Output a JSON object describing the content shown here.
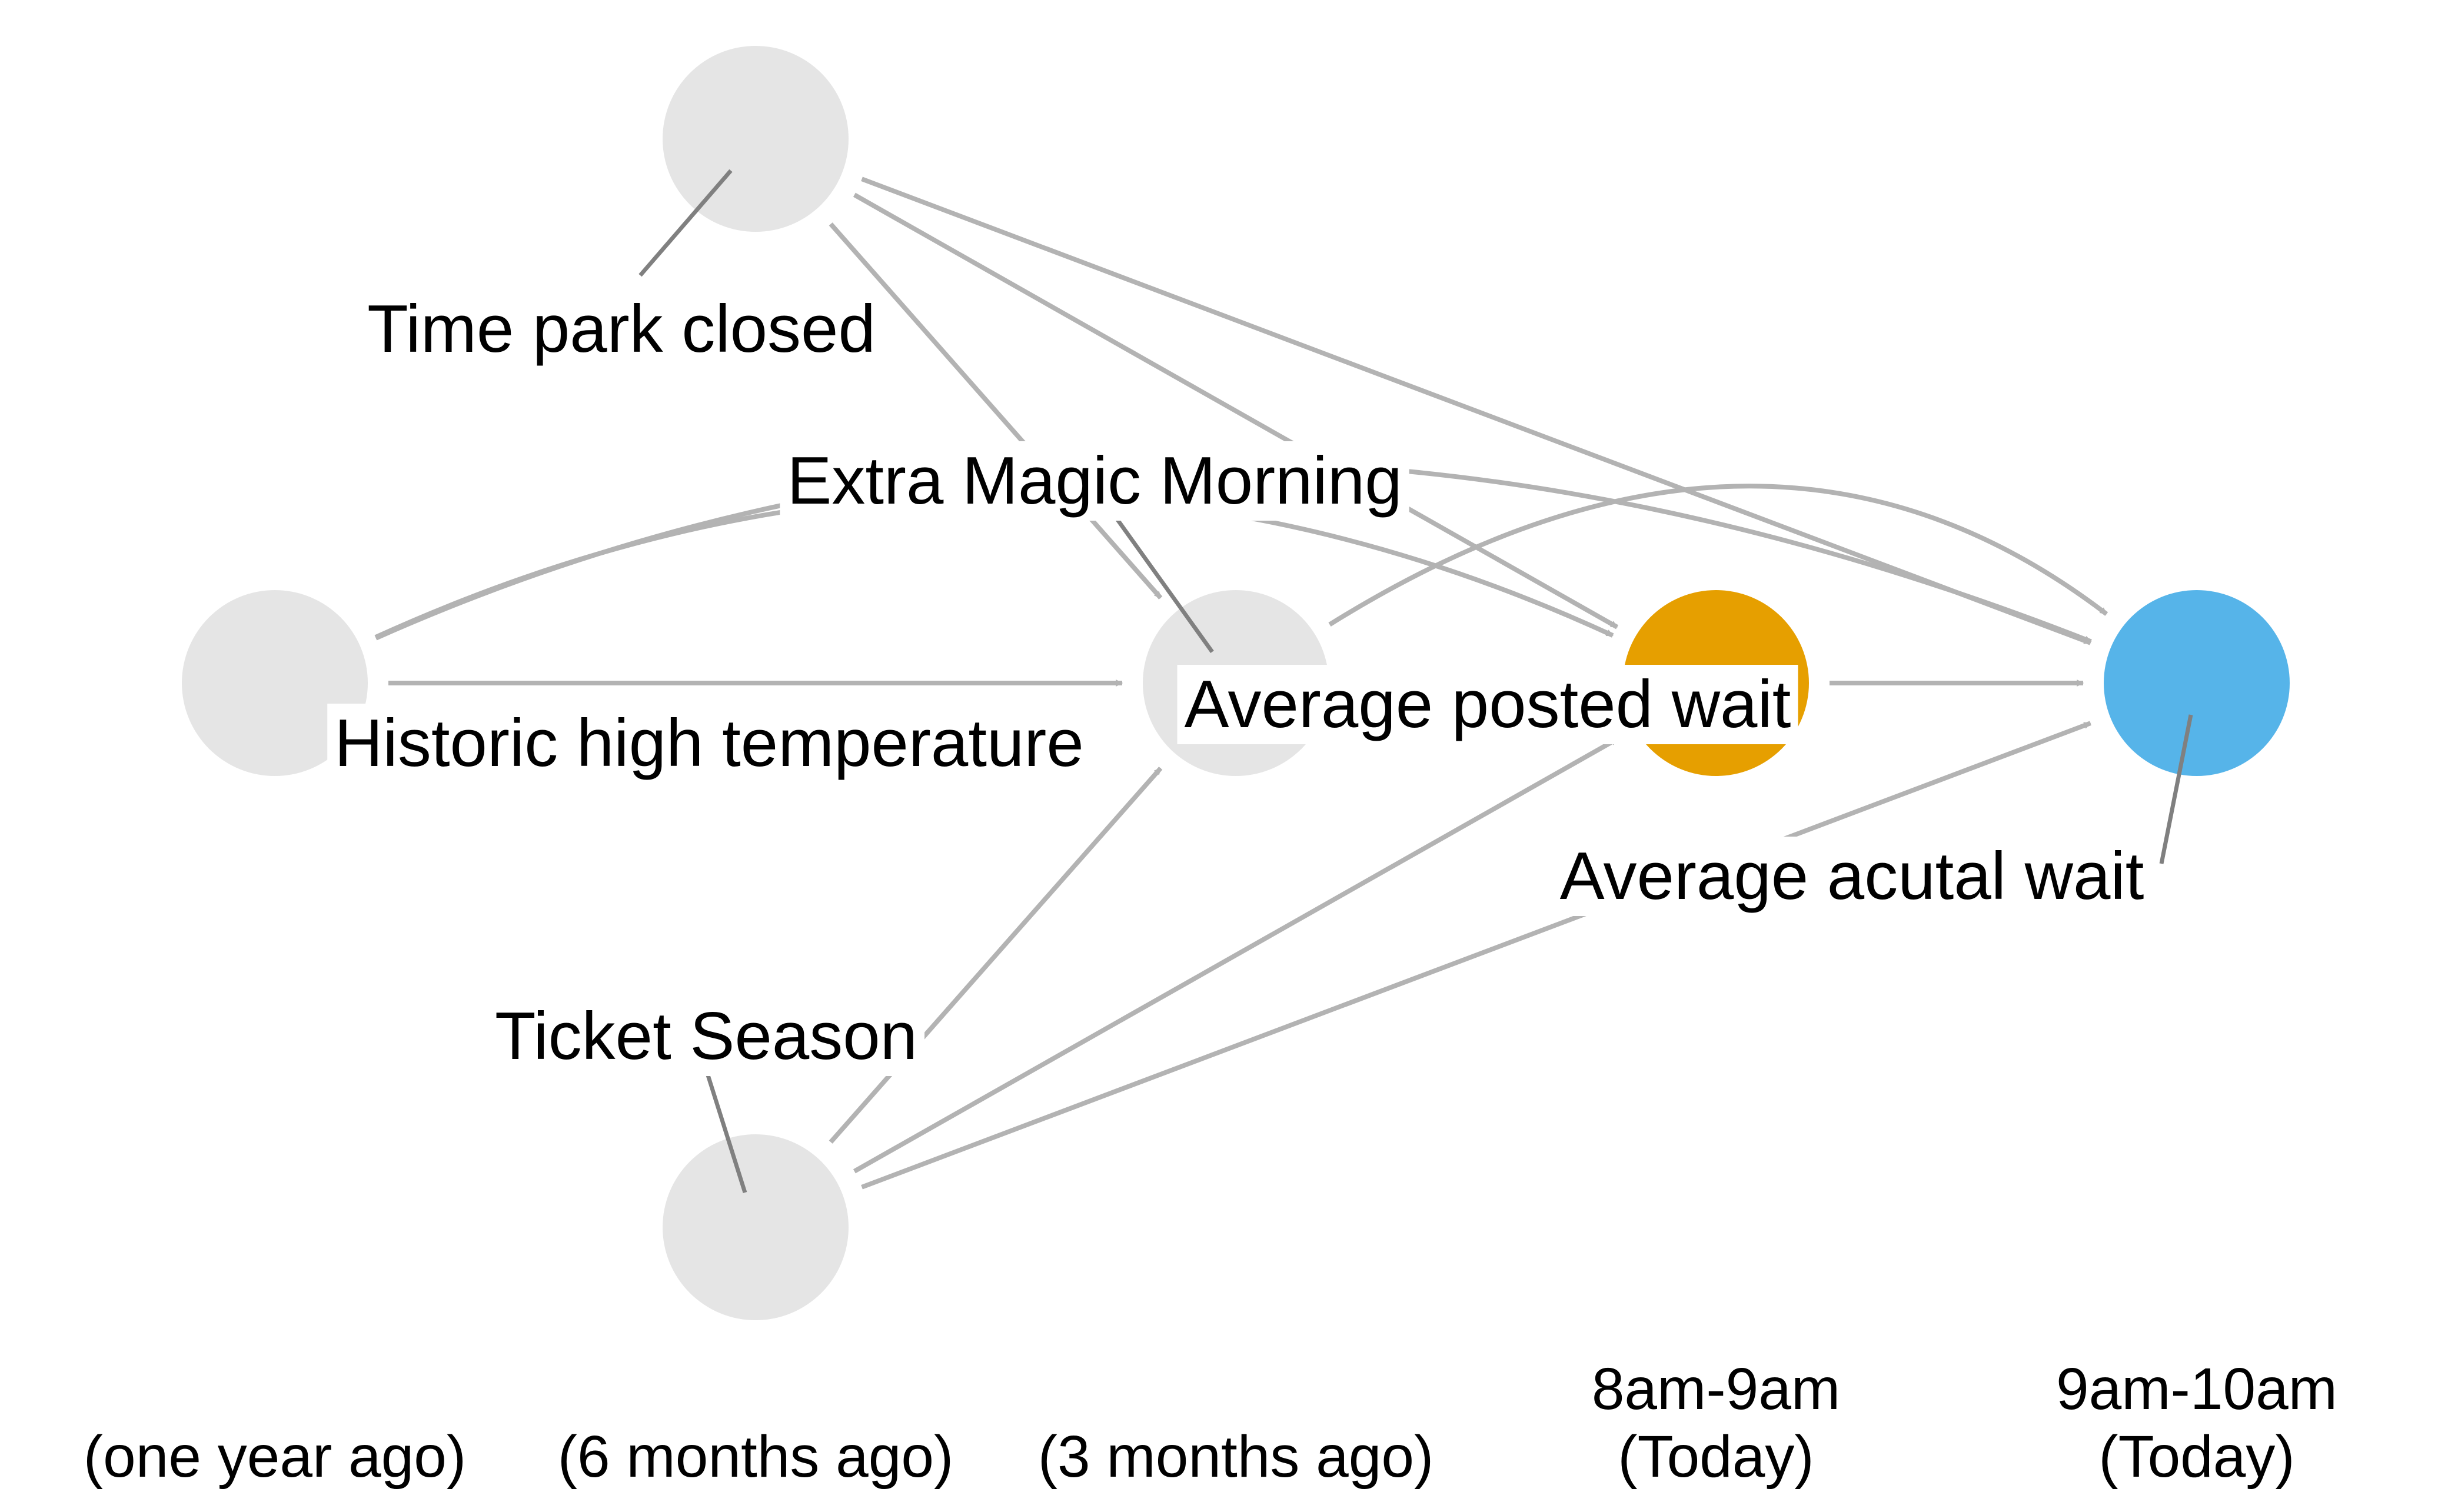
{
  "colors": {
    "background": "#ffffff",
    "default_node": "#e5e5e5",
    "posted_wait_node": "#e69f00",
    "actual_wait_node": "#56b4e9",
    "edge": "#b3b3b3",
    "label_leader": "#808080",
    "text": "#000000"
  },
  "nodes": [
    {
      "id": "park_close",
      "label": "Time park closed",
      "color_key": "default_node"
    },
    {
      "id": "emm",
      "label": "Extra Magic Morning",
      "color_key": "default_node"
    },
    {
      "id": "temp",
      "label": "Historic high temperature",
      "color_key": "default_node"
    },
    {
      "id": "posted",
      "label": "Average posted wait",
      "color_key": "posted_wait_node"
    },
    {
      "id": "actual",
      "label": "Average acutal wait",
      "color_key": "actual_wait_node"
    },
    {
      "id": "ticket",
      "label": "Ticket Season",
      "color_key": "default_node"
    }
  ],
  "edges": [
    {
      "from": "park_close",
      "to": "emm"
    },
    {
      "from": "park_close",
      "to": "posted"
    },
    {
      "from": "park_close",
      "to": "actual"
    },
    {
      "from": "temp",
      "to": "emm"
    },
    {
      "from": "temp",
      "to": "posted"
    },
    {
      "from": "temp",
      "to": "actual"
    },
    {
      "from": "emm",
      "to": "posted"
    },
    {
      "from": "emm",
      "to": "actual"
    },
    {
      "from": "posted",
      "to": "actual"
    },
    {
      "from": "ticket",
      "to": "emm"
    },
    {
      "from": "ticket",
      "to": "posted"
    },
    {
      "from": "ticket",
      "to": "actual"
    }
  ],
  "time_axis": {
    "one_year": "(one year ago)",
    "six_months": "(6 months ago)",
    "three_months": "(3 months ago)",
    "today_8_line1": "8am-9am",
    "today_8_line2": "(Today)",
    "today_9_line1": "9am-10am",
    "today_9_line2": "(Today)"
  }
}
